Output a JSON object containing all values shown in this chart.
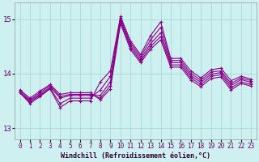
{
  "xlabel": "Windchill (Refroidissement éolien,°C)",
  "background_color": "#cff0f0",
  "grid_color": "#aadddd",
  "line_color": "#880088",
  "xlim": [
    -0.5,
    23.5
  ],
  "ylim": [
    12.8,
    15.3
  ],
  "yticks": [
    13,
    14,
    15
  ],
  "xticks": [
    0,
    1,
    2,
    3,
    4,
    5,
    6,
    7,
    8,
    9,
    10,
    11,
    12,
    13,
    14,
    15,
    16,
    17,
    18,
    19,
    20,
    21,
    22,
    23
  ],
  "series": [
    [
      13.65,
      13.45,
      13.58,
      13.72,
      13.38,
      13.5,
      13.5,
      13.5,
      13.85,
      14.05,
      15.05,
      14.6,
      14.35,
      14.7,
      14.95,
      14.28,
      14.28,
      14.05,
      13.92,
      14.07,
      14.1,
      13.87,
      13.95,
      13.9
    ],
    [
      13.65,
      13.48,
      13.6,
      13.73,
      13.45,
      13.55,
      13.55,
      13.55,
      13.7,
      13.95,
      15.02,
      14.56,
      14.31,
      14.62,
      14.85,
      14.24,
      14.24,
      14.0,
      13.88,
      14.03,
      14.05,
      13.82,
      13.92,
      13.87
    ],
    [
      13.65,
      13.5,
      13.62,
      13.75,
      13.55,
      13.6,
      13.6,
      13.6,
      13.6,
      13.85,
      14.98,
      14.52,
      14.27,
      14.55,
      14.75,
      14.2,
      14.2,
      13.96,
      13.84,
      13.99,
      14.02,
      13.78,
      13.89,
      13.84
    ],
    [
      13.68,
      13.52,
      13.65,
      13.78,
      13.58,
      13.62,
      13.62,
      13.62,
      13.55,
      13.78,
      14.95,
      14.48,
      14.23,
      14.5,
      14.68,
      14.16,
      14.16,
      13.92,
      13.8,
      13.95,
      13.98,
      13.74,
      13.85,
      13.8
    ],
    [
      13.7,
      13.55,
      13.68,
      13.8,
      13.62,
      13.65,
      13.65,
      13.65,
      13.52,
      13.72,
      14.92,
      14.44,
      14.2,
      14.45,
      14.62,
      14.12,
      14.12,
      13.88,
      13.76,
      13.91,
      13.94,
      13.7,
      13.82,
      13.77
    ]
  ]
}
